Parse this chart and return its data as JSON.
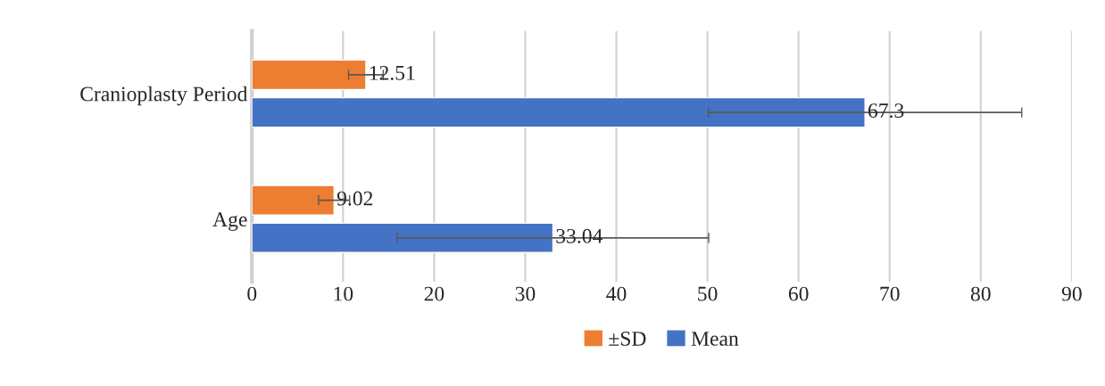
{
  "chart_data": {
    "type": "bar",
    "orientation": "horizontal",
    "categories": [
      "Cranioplasty Period",
      "Age"
    ],
    "series": [
      {
        "name": "±SD",
        "color": "#ed7d31",
        "values": [
          12.51,
          9.02
        ],
        "errors": [
          1.9,
          1.7
        ]
      },
      {
        "name": "Mean",
        "color": "#4472c4",
        "values": [
          67.3,
          33.04
        ],
        "errors": [
          17.2,
          17.1
        ]
      }
    ],
    "xlim": [
      0,
      90
    ],
    "xticks": [
      0,
      10,
      20,
      30,
      40,
      50,
      60,
      70,
      80,
      90
    ],
    "grid": "x",
    "legend": "bottom",
    "data_labels": true
  }
}
